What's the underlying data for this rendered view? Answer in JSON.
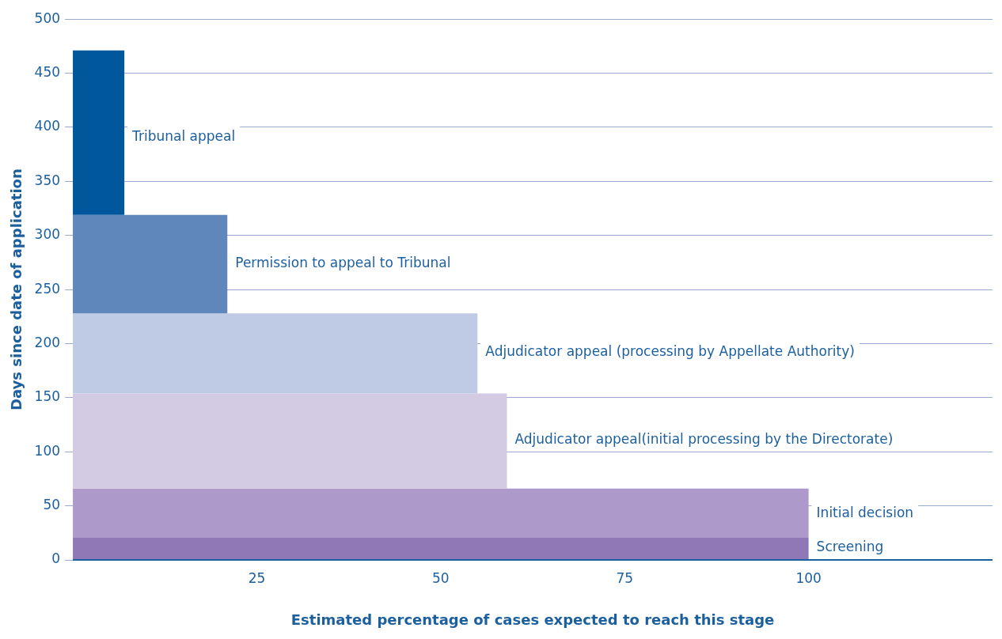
{
  "chart_data": {
    "type": "histogram",
    "orientation": "horizontal",
    "bins": [
      0,
      21,
      66,
      154,
      228,
      319,
      471
    ],
    "values": [
      100,
      100,
      59,
      55,
      21,
      7
    ],
    "colors": [
      "#9077b5",
      "#ad9acb",
      "#d3cae3",
      "#bfcbe5",
      "#5f87bb",
      "#00579c"
    ],
    "xlabel": "Estimated percentage of cases expected to reach this stage",
    "ylabel": "Days since date of application",
    "xlim": [
      0,
      125
    ],
    "xticks": [
      25,
      50,
      75,
      100
    ],
    "ylim": [
      0,
      500
    ],
    "yticks": [
      0,
      50,
      100,
      150,
      200,
      250,
      300,
      350,
      400,
      450,
      500
    ],
    "grid": "y",
    "annotations": [
      {
        "text": "Screening",
        "x": 100,
        "y": 11
      },
      {
        "text": "Initial decision",
        "x": 100,
        "y": 43
      },
      {
        "text": "Adjudicator appeal(initial processing by the Directorate)",
        "x": 59,
        "y": 111
      },
      {
        "text": "Adjudicator appeal (processing by Appellate Authority)",
        "x": 55,
        "y": 192
      },
      {
        "text": "Permission to appeal to Tribunal",
        "x": 21,
        "y": 274
      },
      {
        "text": "Tribunal appeal",
        "x": 7,
        "y": 391
      }
    ]
  }
}
